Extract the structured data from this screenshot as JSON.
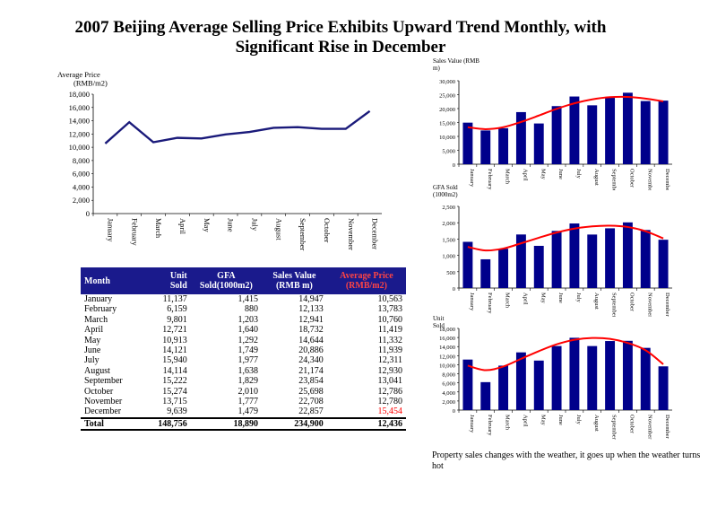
{
  "title": "2007 Beijing Average Selling Price Exhibits Upward Trend Monthly, with Significant Rise in December",
  "colors": {
    "bar": "#00008b",
    "line": "#1a1a7a",
    "trend": "#ff0000",
    "header": "#1a1a8c",
    "highlight": "#ff0000"
  },
  "chart_data": [
    {
      "type": "line",
      "ylabel": "Average Price (RMB/m2)",
      "categories": [
        "January",
        "February",
        "March",
        "April",
        "May",
        "June",
        "July",
        "August",
        "September",
        "October",
        "November",
        "December"
      ],
      "values": [
        10563,
        13783,
        10760,
        11419,
        11332,
        11939,
        12311,
        12930,
        13041,
        12786,
        12780,
        15454
      ],
      "ylim": [
        0,
        18000
      ],
      "yticks": [
        "0",
        "2,000",
        "4,000",
        "6,000",
        "8,000",
        "10,000",
        "12,000",
        "14,000",
        "16,000",
        "18,000"
      ]
    },
    {
      "type": "bar",
      "ylabel": "Sales Value (RMB m)",
      "categories": [
        "January",
        "February",
        "March",
        "April",
        "May",
        "June",
        "July",
        "August",
        "September",
        "October",
        "November",
        "December"
      ],
      "values": [
        14947,
        12133,
        12941,
        18732,
        14644,
        20886,
        24340,
        21174,
        23854,
        25698,
        22708,
        22857
      ],
      "trend": [
        13300,
        12600,
        13300,
        15200,
        17500,
        19900,
        21900,
        23300,
        24100,
        24200,
        23600,
        22600
      ],
      "ylim": [
        0,
        30000
      ],
      "yticks": [
        "0",
        "5,000",
        "10,000",
        "15,000",
        "20,000",
        "25,000",
        "30,000"
      ]
    },
    {
      "type": "bar",
      "ylabel": "GFA Sold (1000m2)",
      "categories": [
        "January",
        "February",
        "March",
        "April",
        "May",
        "June",
        "July",
        "August",
        "September",
        "October",
        "November",
        "December"
      ],
      "values": [
        1415,
        880,
        1203,
        1640,
        1292,
        1749,
        1977,
        1638,
        1829,
        2010,
        1777,
        1479
      ],
      "trend": [
        1260,
        1150,
        1210,
        1370,
        1540,
        1700,
        1820,
        1890,
        1910,
        1870,
        1740,
        1520
      ],
      "ylim": [
        0,
        2500
      ],
      "yticks": [
        "0",
        "500",
        "1,000",
        "1,500",
        "2,000",
        "2,500"
      ]
    },
    {
      "type": "bar",
      "ylabel": "Unit Sold",
      "categories": [
        "January",
        "February",
        "March",
        "April",
        "May",
        "June",
        "July",
        "August",
        "September",
        "October",
        "November",
        "December"
      ],
      "values": [
        11137,
        6159,
        9801,
        12721,
        10913,
        14121,
        15940,
        14114,
        15222,
        15274,
        13715,
        9639
      ],
      "trend": [
        9800,
        8800,
        9600,
        11300,
        13000,
        14500,
        15500,
        15900,
        15700,
        14800,
        13200,
        10100
      ],
      "ylim": [
        0,
        18000
      ],
      "yticks": [
        "0",
        "2,000",
        "4,000",
        "6,000",
        "8,000",
        "10,000",
        "12,000",
        "14,000",
        "16,000",
        "18,000"
      ]
    }
  ],
  "table": {
    "headers": [
      "Month",
      "Unit Sold",
      "GFA Sold(1000m2)",
      "Sales Value (RMB m)",
      "Average Price (RMB/m2)"
    ],
    "rows": [
      [
        "January",
        "11,137",
        "1,415",
        "14,947",
        "10,563"
      ],
      [
        "February",
        "6,159",
        "880",
        "12,133",
        "13,783"
      ],
      [
        "March",
        "9,801",
        "1,203",
        "12,941",
        "10,760"
      ],
      [
        "April",
        "12,721",
        "1,640",
        "18,732",
        "11,419"
      ],
      [
        "May",
        "10,913",
        "1,292",
        "14,644",
        "11,332"
      ],
      [
        "June",
        "14,121",
        "1,749",
        "20,886",
        "11,939"
      ],
      [
        "July",
        "15,940",
        "1,977",
        "24,340",
        "12,311"
      ],
      [
        "August",
        "14,114",
        "1,638",
        "21,174",
        "12,930"
      ],
      [
        "September",
        "15,222",
        "1,829",
        "23,854",
        "13,041"
      ],
      [
        "October",
        "15,274",
        "2,010",
        "25,698",
        "12,786"
      ],
      [
        "November",
        "13,715",
        "1,777",
        "22,708",
        "12,780"
      ],
      [
        "December",
        "9,639",
        "1,479",
        "22,857",
        "15,454"
      ]
    ],
    "total": [
      "Total",
      "148,756",
      "18,890",
      "234,900",
      "12,436"
    ]
  },
  "note": "Property sales changes with the weather, it goes up when the weather turns hot"
}
